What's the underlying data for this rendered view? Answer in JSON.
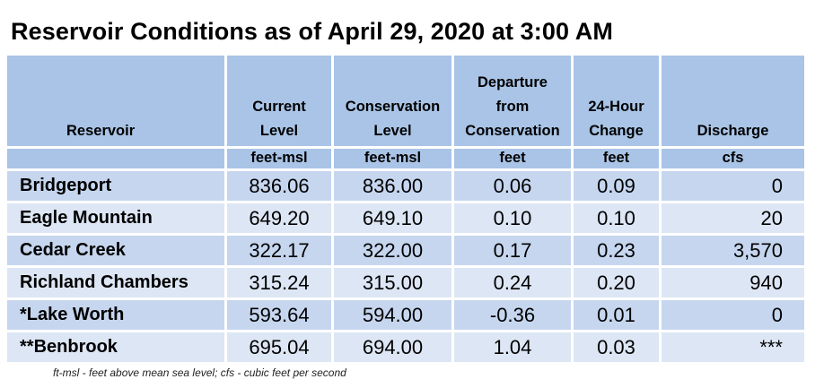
{
  "title": "Reservoir Conditions as of April 29, 2020 at 3:00 AM",
  "columns": [
    {
      "lines": [
        "",
        "",
        "",
        "Reservoir"
      ],
      "unit": ""
    },
    {
      "lines": [
        "",
        "Current",
        "Level",
        ""
      ],
      "unit": "feet-msl"
    },
    {
      "lines": [
        "",
        "Conservation",
        "Level",
        ""
      ],
      "unit": "feet-msl"
    },
    {
      "lines": [
        "Departure",
        "from",
        "Conservation",
        ""
      ],
      "unit": "feet"
    },
    {
      "lines": [
        "",
        "24-Hour",
        "Change",
        ""
      ],
      "unit": "feet"
    },
    {
      "lines": [
        "",
        "",
        "",
        "Discharge"
      ],
      "unit": "cfs"
    }
  ],
  "rows": [
    {
      "name": "Bridgeport",
      "current": "836.06",
      "conservation": "836.00",
      "departure": "0.06",
      "change": "0.09",
      "discharge": "0"
    },
    {
      "name": "Eagle Mountain",
      "current": "649.20",
      "conservation": "649.10",
      "departure": "0.10",
      "change": "0.10",
      "discharge": "20"
    },
    {
      "name": "Cedar Creek",
      "current": "322.17",
      "conservation": "322.00",
      "departure": "0.17",
      "change": "0.23",
      "discharge": "3,570"
    },
    {
      "name": "Richland Chambers",
      "current": "315.24",
      "conservation": "315.00",
      "departure": "0.24",
      "change": "0.20",
      "discharge": "940"
    },
    {
      "name": "*Lake Worth",
      "current": "593.64",
      "conservation": "594.00",
      "departure": "-0.36",
      "change": "0.01",
      "discharge": "0"
    },
    {
      "name": "**Benbrook",
      "current": "695.04",
      "conservation": "694.00",
      "departure": "1.04",
      "change": "0.03",
      "discharge": "***"
    }
  ],
  "footnote": "ft-msl - feet above mean sea level; cfs - cubic feet per second",
  "colors": {
    "header_bg": "#a9c4e6",
    "row_dark": "#c6d6ef",
    "row_light": "#dde6f4"
  }
}
